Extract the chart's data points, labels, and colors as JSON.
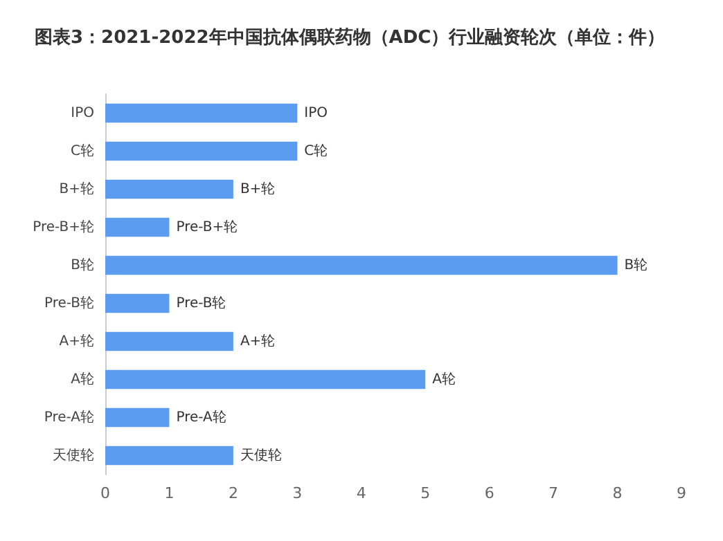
{
  "chart_data": {
    "type": "bar",
    "orientation": "horizontal",
    "title": "图表3：2021-2022年中国抗体偶联药物（ADC）行业融资轮次（单位：件）",
    "categories": [
      "IPO",
      "C轮",
      "B+轮",
      "Pre-B+轮",
      "B轮",
      "Pre-B轮",
      "A+轮",
      "A轮",
      "Pre-A轮",
      "天使轮"
    ],
    "values": [
      3,
      3,
      2,
      1,
      8,
      1,
      2,
      5,
      1,
      2
    ],
    "value_labels": [
      "IPO",
      "C轮",
      "B+轮",
      "Pre-B+轮",
      "B轮",
      "Pre-B轮",
      "A+轮",
      "A轮",
      "Pre-A轮",
      "天使轮"
    ],
    "color": "#5b9bf0",
    "xlim": [
      0,
      9
    ],
    "xticks": [
      0,
      1,
      2,
      3,
      4,
      5,
      6,
      7,
      8,
      9
    ],
    "grid": false
  }
}
